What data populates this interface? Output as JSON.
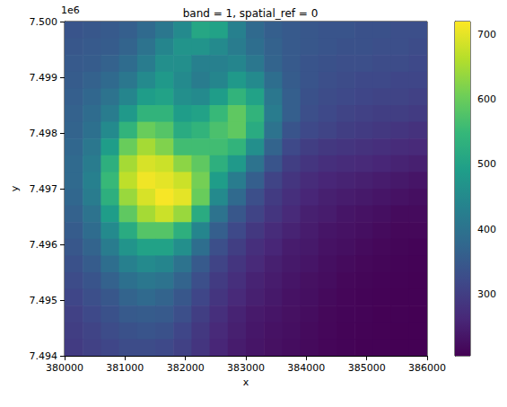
{
  "chart_data": {
    "type": "heatmap",
    "title": "band = 1, spatial_ref = 0",
    "x_label": "x",
    "y_label": "y",
    "annotations": [
      "1e6"
    ],
    "color": "viridis",
    "xlim": [
      380000,
      386000
    ],
    "xticks": [
      380000,
      381000,
      382000,
      383000,
      384000,
      385000,
      386000
    ],
    "ylim": [
      7494000,
      7500000
    ],
    "yticks": [
      {
        "value": 7494000,
        "label": "7.494"
      },
      {
        "value": 7495000,
        "label": "7.495"
      },
      {
        "value": 7496000,
        "label": "7.496"
      },
      {
        "value": 7497000,
        "label": "7.497"
      },
      {
        "value": 7498000,
        "label": "7.498"
      },
      {
        "value": 7499000,
        "label": "7.499"
      },
      {
        "value": 7500000,
        "label": "7.500"
      }
    ],
    "x": [
      380150,
      380450,
      380750,
      381050,
      381350,
      381650,
      381950,
      382250,
      382550,
      382850,
      383150,
      383450,
      383750,
      384050,
      384350,
      384650,
      384950,
      385250,
      385550,
      385850
    ],
    "y": [
      7499850,
      7499550,
      7499250,
      7498950,
      7498650,
      7498350,
      7498050,
      7497750,
      7497450,
      7497150,
      7496850,
      7496550,
      7496250,
      7495950,
      7495650,
      7495350,
      7495050,
      7494750,
      7494450,
      7494150
    ],
    "values": [
      [
        340,
        345,
        350,
        360,
        380,
        410,
        450,
        510,
        500,
        430,
        380,
        360,
        350,
        345,
        340,
        340,
        335,
        335,
        330,
        330
      ],
      [
        345,
        350,
        355,
        370,
        400,
        440,
        470,
        470,
        450,
        420,
        390,
        365,
        350,
        345,
        340,
        335,
        335,
        330,
        330,
        325
      ],
      [
        350,
        355,
        365,
        385,
        420,
        460,
        460,
        430,
        430,
        440,
        410,
        370,
        350,
        340,
        335,
        330,
        330,
        325,
        325,
        320
      ],
      [
        355,
        365,
        380,
        410,
        450,
        480,
        450,
        420,
        440,
        480,
        450,
        390,
        355,
        340,
        330,
        325,
        320,
        320,
        315,
        315
      ],
      [
        360,
        375,
        400,
        440,
        490,
        500,
        460,
        450,
        490,
        540,
        500,
        410,
        360,
        335,
        325,
        320,
        315,
        310,
        310,
        305
      ],
      [
        365,
        385,
        420,
        480,
        540,
        540,
        490,
        500,
        550,
        590,
        540,
        420,
        360,
        330,
        320,
        310,
        305,
        300,
        300,
        295
      ],
      [
        370,
        395,
        450,
        540,
        600,
        580,
        520,
        540,
        570,
        590,
        520,
        400,
        340,
        320,
        310,
        300,
        295,
        290,
        285,
        280
      ],
      [
        375,
        410,
        490,
        600,
        650,
        620,
        560,
        560,
        560,
        540,
        460,
        370,
        320,
        300,
        290,
        285,
        280,
        275,
        270,
        265
      ],
      [
        380,
        420,
        530,
        650,
        690,
        680,
        630,
        590,
        530,
        480,
        400,
        340,
        300,
        285,
        275,
        270,
        265,
        260,
        255,
        250
      ],
      [
        380,
        430,
        550,
        670,
        710,
        700,
        680,
        610,
        490,
        420,
        360,
        310,
        285,
        270,
        260,
        255,
        250,
        245,
        240,
        235
      ],
      [
        375,
        420,
        530,
        640,
        690,
        715,
        700,
        600,
        450,
        380,
        330,
        295,
        275,
        260,
        250,
        245,
        240,
        235,
        230,
        225
      ],
      [
        365,
        400,
        490,
        590,
        650,
        680,
        640,
        520,
        400,
        345,
        310,
        285,
        265,
        250,
        245,
        235,
        230,
        225,
        220,
        220
      ],
      [
        355,
        385,
        450,
        520,
        580,
        580,
        530,
        440,
        360,
        320,
        290,
        270,
        255,
        245,
        235,
        230,
        225,
        220,
        215,
        215
      ],
      [
        345,
        370,
        420,
        470,
        500,
        500,
        460,
        390,
        330,
        300,
        275,
        260,
        245,
        240,
        230,
        225,
        220,
        215,
        212,
        210
      ],
      [
        335,
        355,
        390,
        430,
        450,
        440,
        400,
        350,
        310,
        285,
        265,
        250,
        240,
        235,
        225,
        220,
        215,
        212,
        210,
        208
      ],
      [
        325,
        340,
        365,
        395,
        410,
        400,
        370,
        330,
        295,
        275,
        255,
        245,
        235,
        228,
        222,
        215,
        212,
        210,
        208,
        207
      ],
      [
        315,
        330,
        345,
        370,
        380,
        370,
        345,
        315,
        285,
        265,
        250,
        240,
        230,
        225,
        218,
        213,
        210,
        208,
        207,
        206
      ],
      [
        305,
        320,
        335,
        350,
        355,
        350,
        330,
        300,
        275,
        255,
        242,
        235,
        228,
        222,
        215,
        211,
        209,
        207,
        206,
        205
      ],
      [
        300,
        310,
        325,
        335,
        340,
        335,
        315,
        290,
        265,
        250,
        238,
        230,
        225,
        220,
        214,
        210,
        208,
        206,
        205,
        205
      ],
      [
        295,
        305,
        315,
        325,
        325,
        320,
        305,
        285,
        260,
        245,
        235,
        228,
        222,
        218,
        213,
        210,
        207,
        206,
        205,
        205
      ]
    ],
    "colorbar": {
      "range": [
        205,
        720
      ],
      "ticks": [
        300,
        400,
        500,
        600,
        700
      ]
    }
  }
}
